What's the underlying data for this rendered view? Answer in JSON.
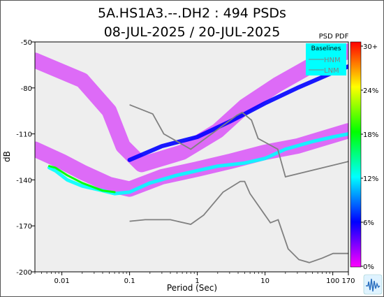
{
  "chart_data": {
    "type": "heatmap",
    "title_line1": "5A.HS1A3.--.DH2 : 494 PSDs",
    "title_line2": "08-JUL-2025 / 20-JUL-2025",
    "xlabel": "Period (Sec)",
    "ylabel": "dB",
    "x_scale": "log",
    "xlim": [
      0.004,
      170
    ],
    "ylim": [
      -200,
      -50
    ],
    "x_ticks": [
      {
        "value": 0.01,
        "label": "0.01"
      },
      {
        "value": 0.1,
        "label": "0.1"
      },
      {
        "value": 1,
        "label": "1"
      },
      {
        "value": 10,
        "label": "10"
      },
      {
        "value": 100,
        "label": "100"
      },
      {
        "value": 170,
        "label": "170"
      }
    ],
    "y_ticks": [
      {
        "value": -50,
        "label": "-50"
      },
      {
        "value": -80,
        "label": "-80"
      },
      {
        "value": -110,
        "label": "-110"
      },
      {
        "value": -140,
        "label": "-140"
      },
      {
        "value": -170,
        "label": "-170"
      },
      {
        "value": -200,
        "label": "-200"
      }
    ],
    "background_color": "#eeeeee",
    "colorbar": {
      "title": "PSD PDF",
      "ticks": [
        "30+",
        "24%",
        "18%",
        "12%",
        "6%",
        "0%"
      ],
      "colors": [
        "#ff00ff",
        "#0000ff",
        "#00ffff",
        "#00ff00",
        "#ffff00",
        "#ff0000"
      ]
    },
    "legend": {
      "title": "Baselines",
      "placement": "top-right",
      "background": "#00ffff",
      "entries": [
        "HNM",
        "LNM"
      ]
    },
    "series": [
      {
        "name": "HNM",
        "color": "#808080",
        "points": [
          [
            0.1,
            -91
          ],
          [
            0.22,
            -97
          ],
          [
            0.32,
            -110
          ],
          [
            0.8,
            -120
          ],
          [
            3.8,
            -98
          ],
          [
            4.6,
            -96
          ],
          [
            6.3,
            -101
          ],
          [
            7.9,
            -113
          ],
          [
            15.4,
            -120
          ],
          [
            20,
            -138
          ],
          [
            170,
            -128
          ]
        ]
      },
      {
        "name": "LNM",
        "color": "#808080",
        "points": [
          [
            0.1,
            -167
          ],
          [
            0.17,
            -166
          ],
          [
            0.4,
            -166
          ],
          [
            0.8,
            -169
          ],
          [
            1.24,
            -163
          ],
          [
            2.4,
            -148
          ],
          [
            4.3,
            -141
          ],
          [
            5,
            -141
          ],
          [
            6,
            -149
          ],
          [
            10,
            -163
          ],
          [
            12,
            -168
          ],
          [
            15.6,
            -166
          ],
          [
            21.9,
            -185
          ],
          [
            31.6,
            -192
          ],
          [
            45,
            -194
          ],
          [
            70,
            -191
          ],
          [
            101,
            -188
          ],
          [
            170,
            -188
          ]
        ]
      }
    ],
    "pdf_bands": [
      {
        "level": "low",
        "color": "#d000ff",
        "points": [
          [
            0.004,
            -62
          ],
          [
            0.02,
            -75
          ],
          [
            0.05,
            -95
          ],
          [
            0.08,
            -118
          ],
          [
            0.15,
            -130
          ],
          [
            0.6,
            -122
          ],
          [
            2,
            -108
          ],
          [
            5,
            -92
          ],
          [
            15,
            -78
          ],
          [
            50,
            -65
          ],
          [
            170,
            -56
          ]
        ]
      },
      {
        "level": "low",
        "color": "#d000ff",
        "points": [
          [
            0.004,
            -120
          ],
          [
            0.01,
            -128
          ],
          [
            0.02,
            -135
          ],
          [
            0.05,
            -143
          ],
          [
            0.1,
            -146
          ],
          [
            0.3,
            -138
          ],
          [
            1,
            -133
          ],
          [
            3,
            -128
          ],
          [
            10,
            -122
          ],
          [
            30,
            -118
          ],
          [
            170,
            -108
          ]
        ]
      },
      {
        "level": "mid",
        "color": "#0000ff",
        "points": [
          [
            0.1,
            -127
          ],
          [
            0.3,
            -118
          ],
          [
            1,
            -112
          ],
          [
            3,
            -102
          ],
          [
            5,
            -97
          ],
          [
            10,
            -90
          ],
          [
            30,
            -80
          ],
          [
            100,
            -70
          ],
          [
            170,
            -66
          ]
        ]
      },
      {
        "level": "high",
        "color": "#00ffff",
        "points": [
          [
            0.0065,
            -132
          ],
          [
            0.008,
            -134
          ],
          [
            0.012,
            -140
          ],
          [
            0.02,
            -144
          ],
          [
            0.04,
            -147
          ],
          [
            0.06,
            -149
          ],
          [
            0.1,
            -148
          ],
          [
            0.2,
            -142
          ],
          [
            0.5,
            -137
          ],
          [
            1,
            -134
          ],
          [
            2,
            -131
          ],
          [
            5,
            -129
          ],
          [
            10,
            -126
          ],
          [
            20,
            -120
          ],
          [
            50,
            -115
          ],
          [
            100,
            -112
          ],
          [
            170,
            -110
          ]
        ]
      },
      {
        "level": "peak",
        "color": "#00ff00",
        "points": [
          [
            0.0065,
            -131
          ],
          [
            0.008,
            -132
          ],
          [
            0.012,
            -137
          ],
          [
            0.02,
            -142
          ],
          [
            0.04,
            -147
          ],
          [
            0.06,
            -148
          ]
        ]
      }
    ]
  },
  "logo_icon": "seismic-wave-logo"
}
